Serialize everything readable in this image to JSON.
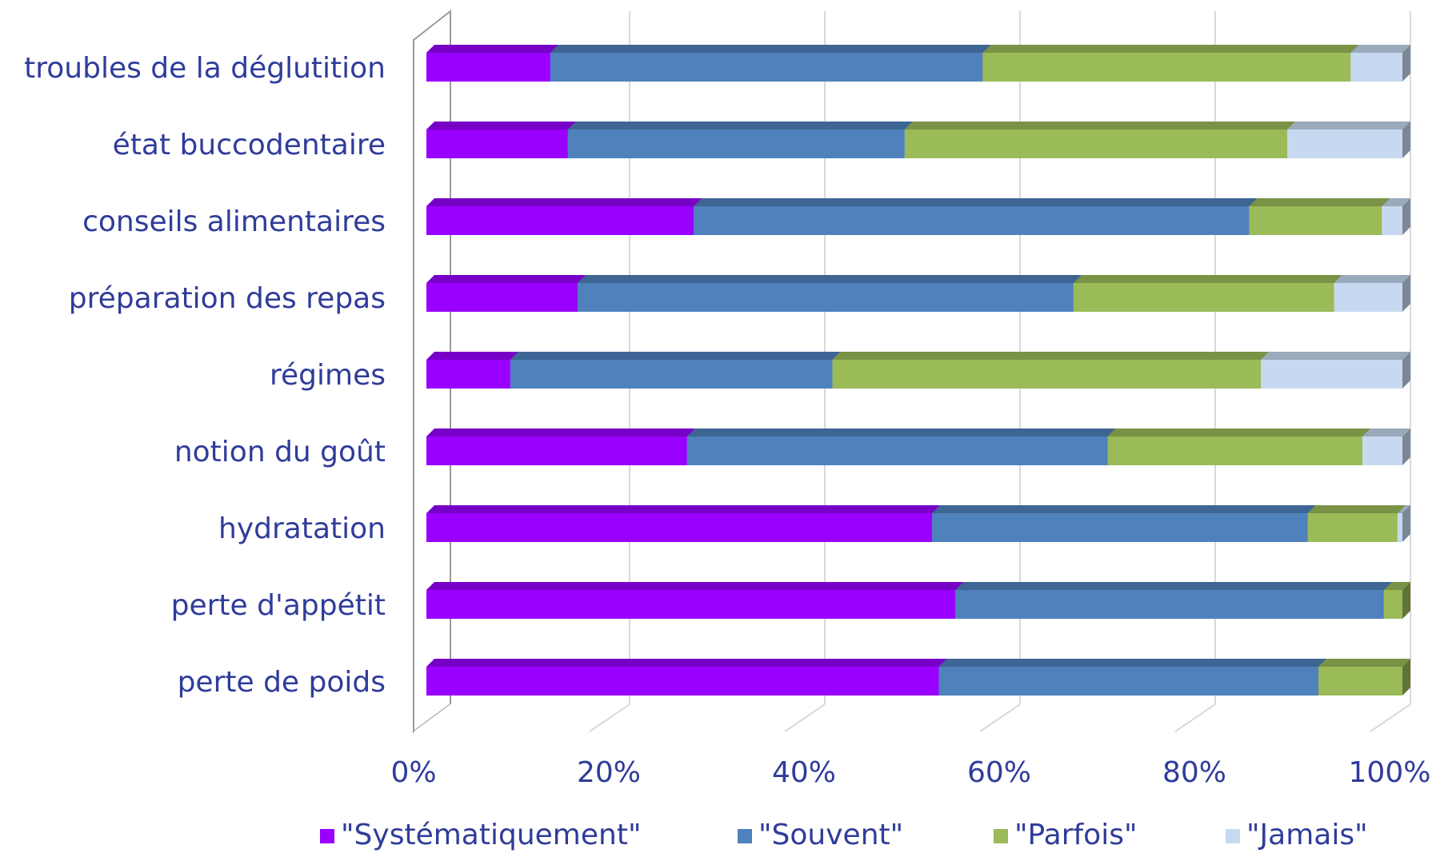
{
  "chart_data": {
    "type": "bar",
    "orientation": "horizontal",
    "stacked": "percent",
    "title": "",
    "xlabel": "",
    "ylabel": "",
    "xlim": [
      0,
      100
    ],
    "grid": true,
    "legend_position": "bottom",
    "categories": [
      "troubles de la déglutition",
      "état buccodentaire",
      "conseils alimentaires",
      "préparation des repas",
      "régimes",
      "notion du goût",
      "hydratation",
      "perte d'appétit",
      "perte de poids"
    ],
    "x_ticks": [
      "0%",
      "20%",
      "40%",
      "60%",
      "80%",
      "100%"
    ],
    "series": [
      {
        "name": "\"Systématiquement\"",
        "color": "#9900ff",
        "values": [
          12.7,
          14.5,
          27.4,
          15.5,
          8.6,
          26.7,
          51.8,
          54.2,
          52.5
        ]
      },
      {
        "name": "\"Souvent\"",
        "color": "#4f81bd",
        "values": [
          44.3,
          34.5,
          56.9,
          50.8,
          33.0,
          43.1,
          38.5,
          43.9,
          38.9
        ]
      },
      {
        "name": "\"Parfois\"",
        "color": "#9bbb59",
        "values": [
          37.7,
          39.2,
          13.6,
          26.7,
          43.9,
          26.1,
          9.2,
          1.9,
          8.6
        ]
      },
      {
        "name": "\"Jamais\"",
        "color": "#c6d9f1",
        "values": [
          5.3,
          11.8,
          2.1,
          7.0,
          14.5,
          4.1,
          0.5,
          0.0,
          0.0
        ]
      }
    ]
  }
}
